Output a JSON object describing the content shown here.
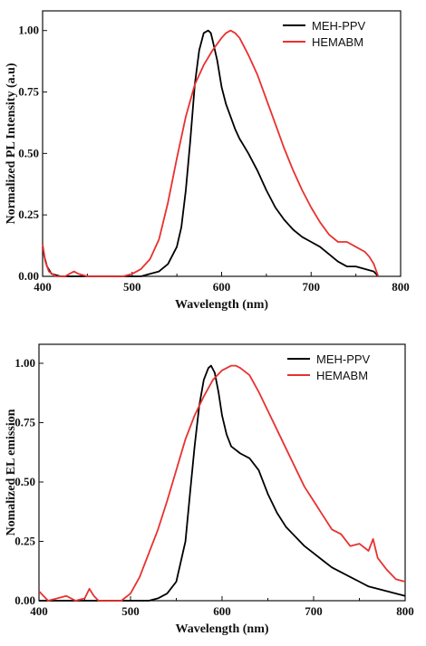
{
  "chart_data": [
    {
      "type": "line",
      "xlabel": "Wavelength (nm)",
      "ylabel": "Normalized PL Intensity (a.u)",
      "xlim": [
        400,
        800
      ],
      "ylim": [
        0,
        1.08
      ],
      "xticks": [
        400,
        500,
        600,
        700,
        800
      ],
      "yticks": [
        "0.00",
        "0.25",
        "0.50",
        "0.75",
        "1.00"
      ],
      "ytick_values": [
        0,
        0.25,
        0.5,
        0.75,
        1.0
      ],
      "legend_position": "top-right",
      "grid": false,
      "series": [
        {
          "name": "MEH-PPV",
          "color": "#000000",
          "x": [
            400,
            402,
            405,
            410,
            420,
            440,
            460,
            480,
            500,
            510,
            520,
            530,
            540,
            550,
            555,
            560,
            565,
            570,
            575,
            580,
            585,
            588,
            590,
            595,
            600,
            605,
            610,
            615,
            620,
            625,
            630,
            640,
            650,
            660,
            670,
            680,
            690,
            700,
            710,
            720,
            730,
            740,
            750,
            760,
            770,
            775
          ],
          "y": [
            0.12,
            0.08,
            0.04,
            0.01,
            0.0,
            0.0,
            0.0,
            0.0,
            0.0,
            0.0,
            0.01,
            0.02,
            0.05,
            0.12,
            0.2,
            0.35,
            0.55,
            0.78,
            0.92,
            0.99,
            1.0,
            0.99,
            0.96,
            0.88,
            0.77,
            0.7,
            0.65,
            0.6,
            0.56,
            0.53,
            0.5,
            0.43,
            0.35,
            0.28,
            0.23,
            0.19,
            0.16,
            0.14,
            0.12,
            0.09,
            0.06,
            0.04,
            0.04,
            0.03,
            0.02,
            0.0
          ]
        },
        {
          "name": "HEMABM",
          "color": "#e8312f",
          "x": [
            400,
            403,
            407,
            415,
            425,
            435,
            440,
            450,
            460,
            470,
            480,
            490,
            500,
            510,
            520,
            530,
            540,
            550,
            560,
            570,
            580,
            590,
            600,
            605,
            610,
            615,
            620,
            630,
            640,
            650,
            660,
            670,
            680,
            690,
            700,
            710,
            720,
            730,
            740,
            750,
            760,
            765,
            770,
            775
          ],
          "y": [
            0.13,
            0.06,
            0.02,
            0.0,
            0.0,
            0.02,
            0.01,
            0.0,
            0.0,
            0.0,
            0.0,
            0.0,
            0.01,
            0.03,
            0.07,
            0.15,
            0.3,
            0.48,
            0.65,
            0.78,
            0.86,
            0.92,
            0.97,
            0.99,
            1.0,
            0.99,
            0.97,
            0.9,
            0.82,
            0.72,
            0.62,
            0.52,
            0.43,
            0.35,
            0.28,
            0.22,
            0.17,
            0.14,
            0.14,
            0.12,
            0.1,
            0.08,
            0.05,
            0.0
          ]
        }
      ]
    },
    {
      "type": "line",
      "xlabel": "Wavelength (nm)",
      "ylabel": "Nomalized EL emission",
      "xlim": [
        400,
        800
      ],
      "ylim": [
        0,
        1.08
      ],
      "xticks": [
        400,
        500,
        600,
        700,
        800
      ],
      "yticks": [
        "0.00",
        "0.25",
        "0.50",
        "0.75",
        "1.00"
      ],
      "ytick_values": [
        0,
        0.25,
        0.5,
        0.75,
        1.0
      ],
      "legend_position": "top-right",
      "grid": false,
      "series": [
        {
          "name": "MEH-PPV",
          "color": "#000000",
          "x": [
            400,
            450,
            500,
            520,
            530,
            540,
            550,
            560,
            565,
            570,
            575,
            580,
            585,
            588,
            592,
            596,
            600,
            605,
            610,
            620,
            630,
            640,
            650,
            660,
            670,
            680,
            690,
            700,
            710,
            720,
            730,
            740,
            750,
            760,
            770,
            780,
            790,
            800
          ],
          "y": [
            0.0,
            0.0,
            0.0,
            0.0,
            0.01,
            0.03,
            0.08,
            0.25,
            0.45,
            0.65,
            0.82,
            0.93,
            0.98,
            0.99,
            0.96,
            0.88,
            0.78,
            0.7,
            0.65,
            0.62,
            0.6,
            0.55,
            0.45,
            0.37,
            0.31,
            0.27,
            0.23,
            0.2,
            0.17,
            0.14,
            0.12,
            0.1,
            0.08,
            0.06,
            0.05,
            0.04,
            0.03,
            0.02
          ]
        },
        {
          "name": "HEMABM",
          "color": "#e8312f",
          "x": [
            400,
            405,
            410,
            420,
            430,
            440,
            450,
            455,
            460,
            465,
            470,
            480,
            490,
            500,
            510,
            520,
            530,
            540,
            550,
            560,
            570,
            580,
            590,
            600,
            610,
            615,
            620,
            630,
            640,
            650,
            660,
            670,
            680,
            690,
            700,
            710,
            720,
            730,
            740,
            750,
            760,
            765,
            770,
            780,
            790,
            800
          ],
          "y": [
            0.04,
            0.02,
            0.0,
            0.01,
            0.02,
            0.0,
            0.01,
            0.05,
            0.02,
            0.0,
            0.0,
            0.0,
            0.0,
            0.03,
            0.1,
            0.2,
            0.3,
            0.42,
            0.55,
            0.68,
            0.78,
            0.86,
            0.93,
            0.97,
            0.99,
            0.99,
            0.98,
            0.95,
            0.88,
            0.8,
            0.72,
            0.64,
            0.56,
            0.48,
            0.42,
            0.36,
            0.3,
            0.28,
            0.23,
            0.24,
            0.21,
            0.26,
            0.18,
            0.13,
            0.09,
            0.08
          ]
        }
      ]
    }
  ]
}
